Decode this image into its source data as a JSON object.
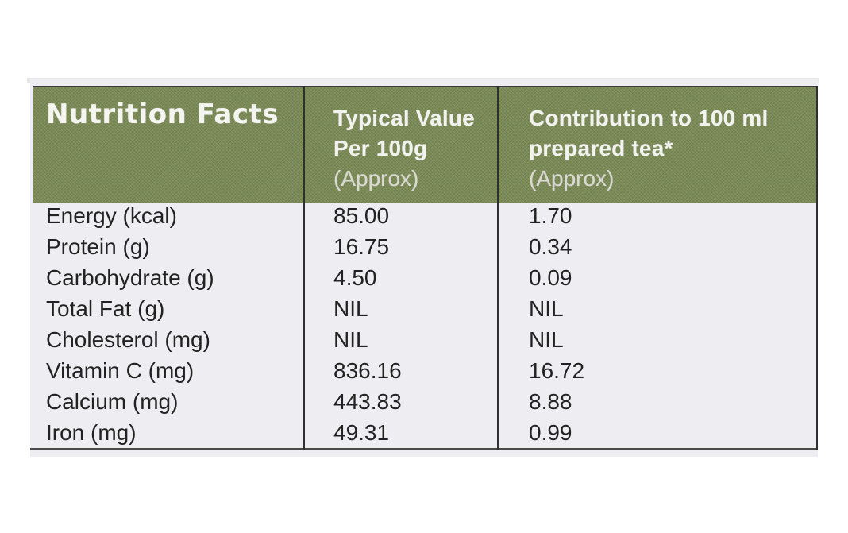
{
  "table": {
    "header": {
      "title": "Nutrition Facts",
      "col1_line1": "Typical Value",
      "col1_line2": "Per 100g",
      "col1_approx": "(Approx)",
      "col2_line1": "Contribution to 100 ml",
      "col2_line2": "prepared tea*",
      "col2_approx": "(Approx)"
    },
    "rows": [
      {
        "label": "Energy (kcal)",
        "per_100g": "85.00",
        "per_100ml": "1.70"
      },
      {
        "label": "Protein (g)",
        "per_100g": "16.75",
        "per_100ml": "0.34"
      },
      {
        "label": "Carbohydrate (g)",
        "per_100g": "4.50",
        "per_100ml": "0.09"
      },
      {
        "label": "Total Fat (g)",
        "per_100g": "NIL",
        "per_100ml": "NIL"
      },
      {
        "label": "Cholesterol (mg)",
        "per_100g": "NIL",
        "per_100ml": "NIL"
      },
      {
        "label": "Vitamin C (mg)",
        "per_100g": "836.16",
        "per_100ml": "16.72"
      },
      {
        "label": "Calcium (mg)",
        "per_100g": "443.83",
        "per_100ml": "8.88"
      },
      {
        "label": "Iron (mg)",
        "per_100g": "49.31",
        "per_100ml": "0.99"
      }
    ]
  },
  "colors": {
    "header_green": "#7a8a55",
    "panel_bg": "#eeedf2",
    "text_dark": "#222222"
  }
}
